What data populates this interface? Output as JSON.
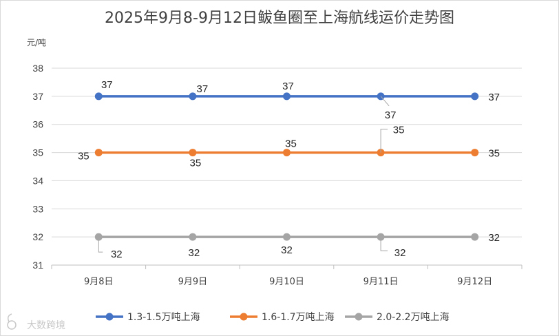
{
  "chart_data": {
    "type": "line",
    "title": "2025年9月8-9月12日鲅鱼圈至上海航线运价走势图",
    "ylabel": "元/吨",
    "xlabel": "",
    "categories": [
      "9月8日",
      "9月9日",
      "9月10日",
      "9月11日",
      "9月12日"
    ],
    "ylim": [
      31,
      38
    ],
    "yticks": [
      31,
      32,
      33,
      34,
      35,
      36,
      37,
      38
    ],
    "grid": true,
    "legend_position": "bottom",
    "series": [
      {
        "name": "1.3-1.5万吨上海",
        "values": [
          37,
          37,
          37,
          37,
          37
        ],
        "color": "#4472c4"
      },
      {
        "name": "1.6-1.7万吨上海",
        "values": [
          35,
          35,
          35,
          35,
          35
        ],
        "color": "#ed7d31"
      },
      {
        "name": "2.0-2.2万吨上海",
        "values": [
          32,
          32,
          32,
          32,
          32
        ],
        "color": "#a5a5a5"
      }
    ]
  },
  "watermark": {
    "text": "大数跨境",
    "icon": "logo-icon"
  }
}
